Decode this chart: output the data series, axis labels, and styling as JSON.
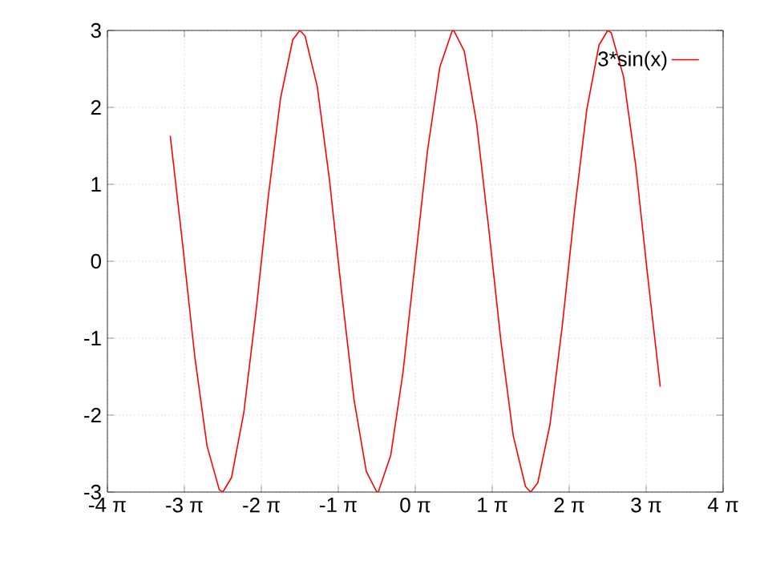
{
  "chart_data": {
    "type": "line",
    "x": [
      -10,
      -9.5,
      -9,
      -8.5,
      -8,
      -7.854,
      -7.5,
      -7,
      -6.5,
      -6,
      -5.5,
      -5,
      -4.712,
      -4.5,
      -4,
      -3.5,
      -3,
      -2.5,
      -2,
      -1.571,
      -1.5,
      -1,
      -0.5,
      0,
      0.5,
      1,
      1.5,
      1.571,
      2,
      2.5,
      3,
      3.5,
      4,
      4.5,
      4.712,
      5,
      5.5,
      6,
      6.5,
      7,
      7.5,
      7.854,
      8,
      8.5,
      9,
      9.5,
      10
    ],
    "series": [
      {
        "name": "3*sin(x)",
        "color": "#ff0000",
        "values": [
          1.63,
          0.23,
          -1.24,
          -2.4,
          -2.97,
          -3,
          -2.81,
          -1.97,
          -0.65,
          0.84,
          2.12,
          2.88,
          3,
          2.93,
          2.27,
          1.05,
          -0.42,
          -1.8,
          -2.73,
          -3,
          -2.99,
          -2.52,
          -1.44,
          0,
          1.44,
          2.52,
          2.99,
          3,
          2.73,
          1.8,
          0.42,
          -1.05,
          -2.27,
          -2.93,
          -3,
          -2.88,
          -2.12,
          -0.84,
          0.65,
          1.97,
          2.81,
          3,
          2.97,
          2.4,
          1.24,
          -0.23,
          -1.63
        ]
      }
    ],
    "xlim": [
      -12.566,
      12.566
    ],
    "xticks": [
      {
        "value": -12.566,
        "label": "-4 π"
      },
      {
        "value": -9.425,
        "label": "-3 π"
      },
      {
        "value": -6.283,
        "label": "-2 π"
      },
      {
        "value": -3.142,
        "label": "-1 π"
      },
      {
        "value": 0,
        "label": "0 π"
      },
      {
        "value": 3.142,
        "label": "1 π"
      },
      {
        "value": 6.283,
        "label": "2 π"
      },
      {
        "value": 9.425,
        "label": "3 π"
      },
      {
        "value": 12.566,
        "label": "4 π"
      }
    ],
    "ylim": [
      -3,
      3
    ],
    "yticks": [
      -3,
      -2,
      -1,
      0,
      1,
      2,
      3
    ],
    "grid": true,
    "legend": "top right",
    "marker": "none",
    "line_style": "solid"
  }
}
